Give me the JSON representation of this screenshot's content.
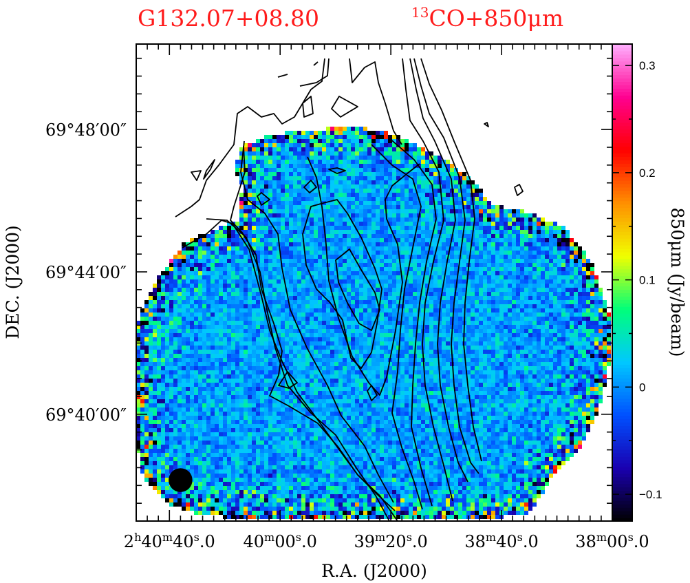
{
  "chart_data": {
    "type": "heatmap",
    "title_left": "G132.07+08.80",
    "title_right": {
      "sup": "13",
      "text": "CO+850μm"
    },
    "xlabel": "R.A. (J2000)",
    "ylabel": "DEC. (J2000)",
    "colorbar_label": "850μm (Jy/beam)",
    "colormap": [
      "#000000",
      "#1a00b0",
      "#0050ff",
      "#00c8ff",
      "#00ff7a",
      "#f0ff00",
      "#ff9000",
      "#ff0000",
      "#ff0090",
      "#ffb0ff"
    ],
    "colorbar_range": [
      -0.125,
      0.32
    ],
    "colorbar_ticks": [
      {
        "value": -0.1,
        "label": "−0.1"
      },
      {
        "value": 0,
        "label": "0"
      },
      {
        "value": 0.1,
        "label": "0.1"
      },
      {
        "value": 0.2,
        "label": "0.2"
      },
      {
        "value": 0.3,
        "label": "0.3"
      }
    ],
    "ra_ticks": [
      {
        "h": "2",
        "m": "40",
        "s": "40",
        "frac": "0",
        "ra_sec": 160
      },
      {
        "m": "40",
        "s": "00",
        "frac": "0",
        "ra_sec": 120
      },
      {
        "m": "39",
        "s": "20",
        "frac": "0",
        "ra_sec": 80
      },
      {
        "m": "38",
        "s": "40",
        "frac": "0",
        "ra_sec": 40
      },
      {
        "m": "38",
        "s": "00",
        "frac": "0",
        "ra_sec": 0
      }
    ],
    "xlim_ra_sec": [
      172,
      0
    ],
    "dec_ticks": [
      {
        "label": "69°48′00″",
        "dec_min": 48
      },
      {
        "label": "69°44′00″",
        "dec_min": 44
      },
      {
        "label": "69°40′00″",
        "dec_min": 40
      }
    ],
    "ylim_dec_min": [
      37.0,
      50.4
    ],
    "beam": {
      "ra_sec": 156,
      "dec_min": 38.15,
      "diameter_arcmin": 0.67
    }
  }
}
